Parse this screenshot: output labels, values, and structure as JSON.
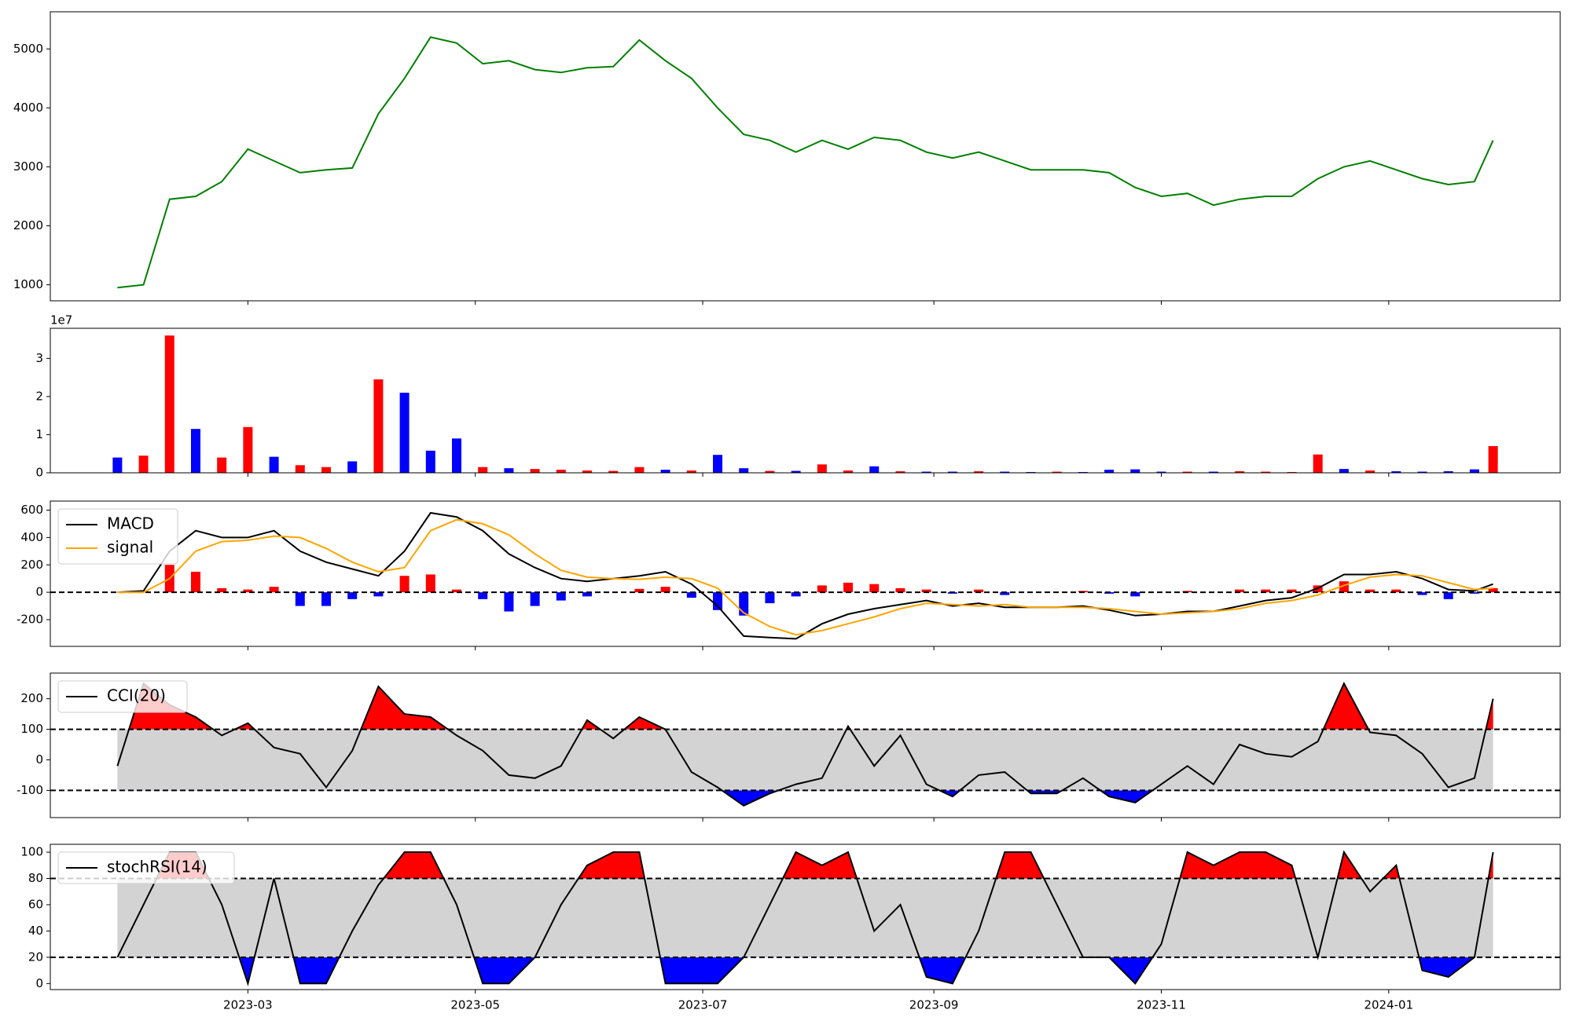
{
  "chart_data": [
    {
      "type": "line",
      "color": "green",
      "x": [
        "2023-01-25",
        "2023-02-01",
        "2023-02-08",
        "2023-02-15",
        "2023-02-22",
        "2023-03-01",
        "2023-03-08",
        "2023-03-15",
        "2023-03-22",
        "2023-03-29",
        "2023-04-05",
        "2023-04-12",
        "2023-04-19",
        "2023-04-26",
        "2023-05-03",
        "2023-05-10",
        "2023-05-17",
        "2023-05-24",
        "2023-05-31",
        "2023-06-07",
        "2023-06-14",
        "2023-06-21",
        "2023-06-28",
        "2023-07-05",
        "2023-07-12",
        "2023-07-19",
        "2023-07-26",
        "2023-08-02",
        "2023-08-09",
        "2023-08-16",
        "2023-08-23",
        "2023-08-30",
        "2023-09-06",
        "2023-09-13",
        "2023-09-20",
        "2023-09-27",
        "2023-10-04",
        "2023-10-11",
        "2023-10-18",
        "2023-10-25",
        "2023-11-01",
        "2023-11-08",
        "2023-11-15",
        "2023-11-22",
        "2023-11-29",
        "2023-12-06",
        "2023-12-13",
        "2023-12-20",
        "2023-12-27",
        "2024-01-03",
        "2024-01-10",
        "2024-01-17",
        "2024-01-24",
        "2024-01-29"
      ],
      "values": [
        950,
        1000,
        2450,
        2500,
        2750,
        3300,
        3100,
        2900,
        2950,
        2980,
        3900,
        4500,
        5200,
        5100,
        4750,
        4800,
        4650,
        4600,
        4680,
        4700,
        5150,
        4800,
        4500,
        4000,
        3550,
        3450,
        3250,
        3450,
        3300,
        3500,
        3450,
        3250,
        3150,
        3250,
        3100,
        2950,
        2950,
        2950,
        2900,
        2650,
        2500,
        2550,
        2350,
        2450,
        2500,
        2500,
        2800,
        3000,
        3100,
        2950,
        2800,
        2700,
        2750,
        3450
      ],
      "xlim": [
        "2023-01-07",
        "2024-02-16"
      ],
      "xticks": [
        {
          "value": "2023-03-01",
          "label": "2023-03"
        },
        {
          "value": "2023-05-01",
          "label": "2023-05"
        },
        {
          "value": "2023-07-01",
          "label": "2023-07"
        },
        {
          "value": "2023-09-01",
          "label": "2023-09"
        },
        {
          "value": "2023-11-01",
          "label": "2023-11"
        },
        {
          "value": "2024-01-01",
          "label": "2024-01"
        }
      ],
      "ylim": [
        728,
        5630
      ],
      "yticks": [
        1000,
        2000,
        3000,
        4000,
        5000
      ]
    },
    {
      "type": "bar",
      "offset_label": "1e7",
      "values": [
        4000000,
        4500000,
        36000000,
        11500000,
        4000000,
        12000000,
        4200000,
        2000000,
        1500000,
        3000000,
        24500000,
        21000000,
        5800000,
        9000000,
        1500000,
        1200000,
        1000000,
        800000,
        600000,
        500000,
        1500000,
        800000,
        600000,
        4700000,
        1200000,
        500000,
        500000,
        2200000,
        600000,
        1700000,
        400000,
        300000,
        300000,
        400000,
        300000,
        200000,
        300000,
        200000,
        800000,
        900000,
        300000,
        300000,
        300000,
        400000,
        300000,
        200000,
        4800000,
        1000000,
        600000,
        400000,
        300000,
        400000,
        900000,
        7000000
      ],
      "colors": [
        "blue",
        "red",
        "red",
        "blue",
        "red",
        "red",
        "blue",
        "red",
        "red",
        "blue",
        "red",
        "blue",
        "blue",
        "blue",
        "red",
        "blue",
        "red",
        "red",
        "red",
        "red",
        "red",
        "blue",
        "red",
        "blue",
        "blue",
        "red",
        "blue",
        "red",
        "red",
        "blue",
        "red",
        "blue",
        "blue",
        "red",
        "blue",
        "blue",
        "red",
        "blue",
        "blue",
        "blue",
        "blue",
        "red",
        "blue",
        "red",
        "red",
        "red",
        "red",
        "blue",
        "red",
        "blue",
        "blue",
        "blue",
        "blue",
        "red"
      ],
      "ylim": [
        0,
        37900000
      ],
      "yticks": [
        0,
        {
          "value": 10000000,
          "label": "1"
        },
        {
          "value": 20000000,
          "label": "2"
        },
        {
          "value": 30000000,
          "label": "3"
        }
      ]
    },
    {
      "type": "macd",
      "legend": "upper left",
      "series": [
        {
          "name": "MACD",
          "color": "black",
          "values": [
            0,
            10,
            300,
            450,
            400,
            400,
            450,
            300,
            220,
            170,
            120,
            300,
            580,
            550,
            450,
            280,
            180,
            100,
            80,
            100,
            120,
            150,
            60,
            -100,
            -320,
            -330,
            -340,
            -230,
            -160,
            -120,
            -90,
            -60,
            -100,
            -80,
            -110,
            -110,
            -110,
            -100,
            -130,
            -170,
            -160,
            -140,
            -140,
            -100,
            -60,
            -40,
            30,
            130,
            130,
            150,
            100,
            20,
            10,
            60
          ]
        },
        {
          "name": "signal",
          "color": "orange",
          "values": [
            0,
            0,
            100,
            300,
            370,
            380,
            410,
            400,
            320,
            220,
            150,
            180,
            450,
            530,
            500,
            420,
            280,
            160,
            110,
            100,
            95,
            110,
            100,
            30,
            -150,
            -250,
            -310,
            -280,
            -230,
            -180,
            -120,
            -80,
            -90,
            -100,
            -90,
            -110,
            -110,
            -110,
            -120,
            -140,
            -160,
            -150,
            -140,
            -120,
            -80,
            -60,
            -20,
            50,
            110,
            130,
            120,
            70,
            20,
            30
          ]
        }
      ],
      "histogram": [
        0,
        10,
        200,
        150,
        30,
        20,
        40,
        -100,
        -100,
        -50,
        -30,
        120,
        130,
        20,
        -50,
        -140,
        -100,
        -60,
        -30,
        0,
        25,
        40,
        -40,
        -130,
        -170,
        -80,
        -30,
        50,
        70,
        60,
        30,
        20,
        -10,
        20,
        -20,
        0,
        0,
        10,
        -10,
        -30,
        0,
        10,
        0,
        20,
        20,
        20,
        50,
        80,
        20,
        20,
        -20,
        -50,
        -10,
        30
      ],
      "pos_color": "red",
      "neg_color": "blue",
      "levels": [
        0
      ],
      "ylim": [
        -395,
        666
      ],
      "yticks": [
        -200,
        0,
        200,
        400,
        600
      ]
    },
    {
      "type": "oscillator",
      "legend": "upper left",
      "series": [
        {
          "name": "CCI(20)",
          "color": "black",
          "values": [
            -20,
            250,
            180,
            140,
            80,
            120,
            40,
            20,
            -90,
            30,
            240,
            150,
            140,
            80,
            30,
            -50,
            -60,
            -20,
            130,
            70,
            140,
            100,
            -40,
            -90,
            -150,
            -110,
            -80,
            -60,
            110,
            -20,
            80,
            -80,
            -120,
            -50,
            -40,
            -110,
            -110,
            -60,
            -120,
            -140,
            -80,
            -20,
            -80,
            50,
            20,
            10,
            60,
            250,
            90,
            80,
            20,
            -90,
            -60,
            200
          ]
        }
      ],
      "levels": [
        100,
        -100
      ],
      "band_color": "#d3d3d3",
      "high_color": "red",
      "low_color": "blue",
      "ylim": [
        -189,
        284
      ],
      "yticks": [
        -100,
        0,
        100,
        200
      ]
    },
    {
      "type": "oscillator",
      "legend": "upper left",
      "series": [
        {
          "name": "stochRSI(14)",
          "color": "black",
          "values": [
            20,
            60,
            100,
            100,
            60,
            0,
            80,
            0,
            0,
            40,
            75,
            100,
            100,
            60,
            0,
            0,
            20,
            60,
            90,
            100,
            100,
            0,
            0,
            0,
            20,
            60,
            100,
            90,
            100,
            40,
            60,
            5,
            0,
            40,
            100,
            100,
            60,
            20,
            20,
            0,
            30,
            100,
            90,
            100,
            100,
            90,
            20,
            100,
            70,
            90,
            10,
            5,
            20,
            100
          ]
        }
      ],
      "levels": [
        80,
        20
      ],
      "band_color": "#d3d3d3",
      "high_color": "red",
      "low_color": "blue",
      "ylim": [
        -4.6,
        106
      ],
      "yticks": [
        0,
        20,
        40,
        60,
        80,
        100
      ]
    }
  ]
}
